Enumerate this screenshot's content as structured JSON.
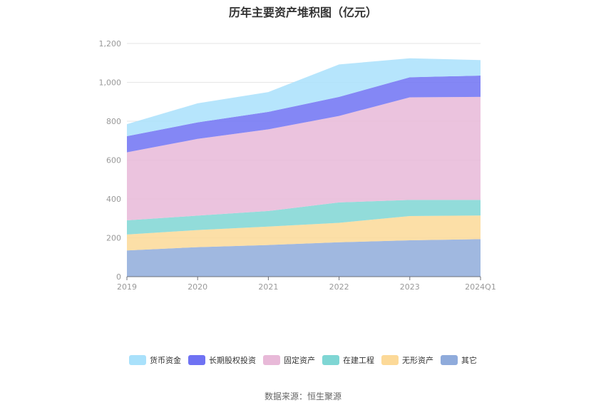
{
  "chart_data": {
    "type": "area",
    "stacked": true,
    "title": "历年主要资产堆积图（亿元）",
    "categories": [
      "2019",
      "2020",
      "2021",
      "2022",
      "2023",
      "2024Q1"
    ],
    "ylim": [
      0,
      1200
    ],
    "yticks": [
      0,
      200,
      400,
      600,
      800,
      1000,
      1200
    ],
    "ytick_labels": [
      "0",
      "200",
      "400",
      "600",
      "800",
      "1,000",
      "1,200"
    ],
    "grid": true,
    "legend_position": "bottom",
    "series": [
      {
        "name": "其它",
        "color": "#8fabdb",
        "values": [
          135,
          152,
          163,
          177,
          187,
          193
        ]
      },
      {
        "name": "无形资产",
        "color": "#fcd998",
        "values": [
          82,
          88,
          95,
          100,
          125,
          122
        ]
      },
      {
        "name": "在建工程",
        "color": "#7fd6d4",
        "values": [
          73,
          74,
          80,
          105,
          83,
          80
        ]
      },
      {
        "name": "固定资产",
        "color": "#e8b9d8",
        "values": [
          350,
          395,
          420,
          445,
          528,
          530
        ]
      },
      {
        "name": "长期股权投资",
        "color": "#6f72f3",
        "values": [
          83,
          85,
          90,
          98,
          103,
          110
        ]
      },
      {
        "name": "货币资金",
        "color": "#a9e1fb",
        "values": [
          62,
          98,
          102,
          167,
          98,
          80
        ]
      }
    ],
    "legend_order": [
      "货币资金",
      "长期股权投资",
      "固定资产",
      "在建工程",
      "无形资产",
      "其它"
    ]
  },
  "footer": {
    "source": "数据来源：恒生聚源"
  }
}
